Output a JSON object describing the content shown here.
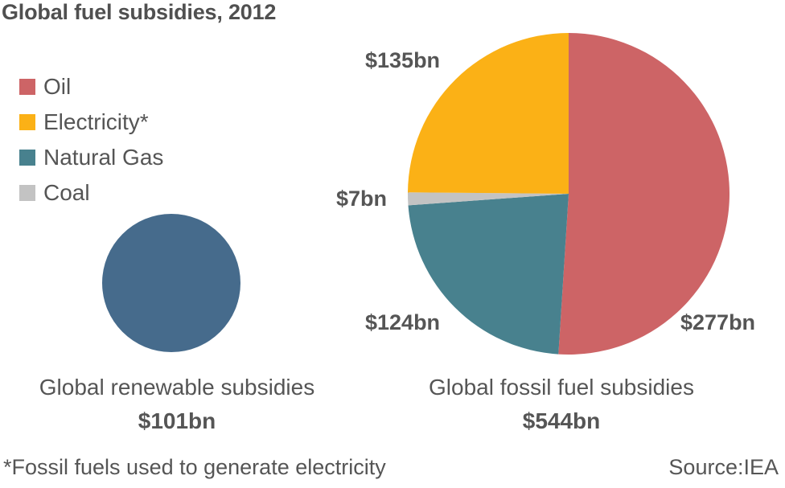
{
  "title": "Global fuel subsidies, 2012",
  "legend": [
    {
      "label": "Oil",
      "color": "#cd6466"
    },
    {
      "label": "Electricity*",
      "color": "#fbb116"
    },
    {
      "label": "Natural Gas",
      "color": "#48818e"
    },
    {
      "label": "Coal",
      "color": "#c3c3c3"
    }
  ],
  "renewable": {
    "caption": "Global renewable subsidies",
    "total": "$101bn",
    "color": "#466b8c"
  },
  "fossil": {
    "caption": "Global fossil fuel subsidies",
    "total": "$544bn",
    "labels": {
      "oil": "$277bn",
      "electricity": "$135bn",
      "natural_gas": "$124bn",
      "coal": "$7bn"
    }
  },
  "footnote": "*Fossil fuels used to generate electricity",
  "source": "Source:IEA",
  "chart_data": [
    {
      "type": "pie",
      "title": "Global fossil fuel subsidies",
      "total": 544,
      "unit": "$bn",
      "categories": [
        "Oil",
        "Electricity*",
        "Natural Gas",
        "Coal"
      ],
      "values": [
        277,
        135,
        124,
        7
      ],
      "colors": [
        "#cd6466",
        "#fbb116",
        "#48818e",
        "#c3c3c3"
      ],
      "data_labels": [
        "$277bn",
        "$135bn",
        "$124bn",
        "$7bn"
      ]
    },
    {
      "type": "pie",
      "title": "Global renewable subsidies",
      "total": 101,
      "unit": "$bn",
      "categories": [
        "Renewables"
      ],
      "values": [
        101
      ],
      "colors": [
        "#466b8c"
      ]
    }
  ]
}
